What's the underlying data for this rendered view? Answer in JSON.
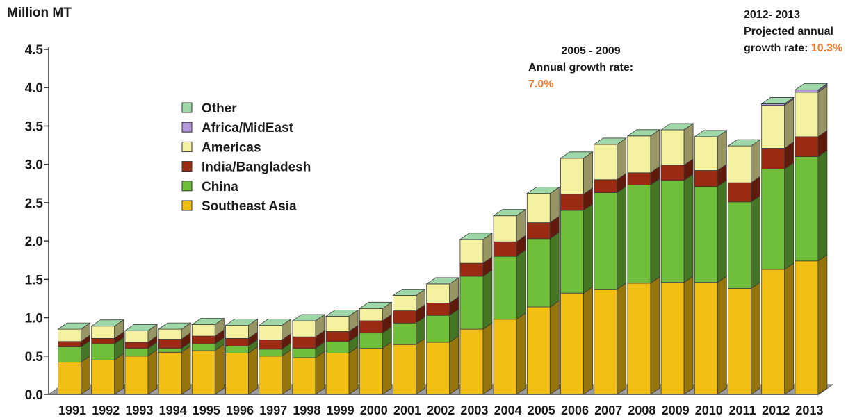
{
  "unit_label": "Million MT",
  "annotations": {
    "period_2005_2009": {
      "period": "2005 - 2009",
      "label": "Annual growth rate: ",
      "value": "7.0%"
    },
    "period_2012_2013": {
      "period": "2012- 2013",
      "line2": "Projected annual",
      "label": "growth rate: ",
      "value": "10.3%"
    }
  },
  "colors": {
    "Other": "#9fd8a8",
    "Africa/MidEast": "#b59adb",
    "Americas": "#f4f1a0",
    "India/Bangladesh": "#9b2a12",
    "China": "#6fbf3a",
    "Southeast Asia": "#f2bf14",
    "accent": "#f07a2a"
  },
  "chart_data": {
    "type": "bar",
    "stacked": true,
    "ylabel": "Million MT",
    "ylim": [
      0,
      4.5
    ],
    "yticks": [
      "0.0",
      "0.5",
      "1.0",
      "1.5",
      "2.0",
      "2.5",
      "3.0",
      "3.5",
      "4.0",
      "4.5"
    ],
    "legend_position": "upper-left",
    "categories": [
      "1991",
      "1992",
      "1993",
      "1994",
      "1995",
      "1996",
      "1997",
      "1998",
      "1999",
      "2000",
      "2001",
      "2002",
      "2003",
      "2004",
      "2005",
      "2006",
      "2007",
      "2008",
      "2009",
      "2010",
      "2011",
      "2012",
      "2013"
    ],
    "series": [
      {
        "name": "Southeast Asia",
        "values": [
          0.42,
          0.45,
          0.5,
          0.55,
          0.57,
          0.54,
          0.5,
          0.48,
          0.54,
          0.6,
          0.65,
          0.68,
          0.85,
          0.98,
          1.14,
          1.32,
          1.37,
          1.45,
          1.46,
          1.46,
          1.38,
          1.63,
          1.74
        ]
      },
      {
        "name": "China",
        "values": [
          0.2,
          0.21,
          0.1,
          0.05,
          0.09,
          0.09,
          0.09,
          0.12,
          0.15,
          0.2,
          0.28,
          0.35,
          0.69,
          0.82,
          0.89,
          1.08,
          1.26,
          1.28,
          1.33,
          1.25,
          1.13,
          1.31,
          1.36
        ]
      },
      {
        "name": "India/Bangladesh",
        "values": [
          0.07,
          0.07,
          0.08,
          0.12,
          0.1,
          0.1,
          0.12,
          0.15,
          0.13,
          0.16,
          0.16,
          0.16,
          0.17,
          0.19,
          0.21,
          0.21,
          0.17,
          0.16,
          0.2,
          0.21,
          0.25,
          0.27,
          0.26
        ]
      },
      {
        "name": "Americas",
        "values": [
          0.16,
          0.16,
          0.15,
          0.13,
          0.15,
          0.17,
          0.19,
          0.21,
          0.2,
          0.16,
          0.2,
          0.25,
          0.31,
          0.34,
          0.38,
          0.47,
          0.46,
          0.48,
          0.46,
          0.44,
          0.48,
          0.56,
          0.58
        ]
      },
      {
        "name": "Africa/MidEast",
        "values": [
          0,
          0,
          0,
          0,
          0,
          0,
          0,
          0,
          0,
          0,
          0,
          0,
          0,
          0,
          0,
          0,
          0,
          0,
          0,
          0,
          0,
          0.02,
          0.03
        ]
      },
      {
        "name": "Other",
        "values": [
          0,
          0,
          0,
          0,
          0,
          0,
          0,
          0,
          0,
          0,
          0,
          0,
          0,
          0,
          0,
          0,
          0,
          0,
          0,
          0,
          0,
          0,
          0
        ]
      }
    ],
    "legend_order": [
      "Other",
      "Africa/MidEast",
      "Americas",
      "India/Bangladesh",
      "China",
      "Southeast Asia"
    ]
  }
}
